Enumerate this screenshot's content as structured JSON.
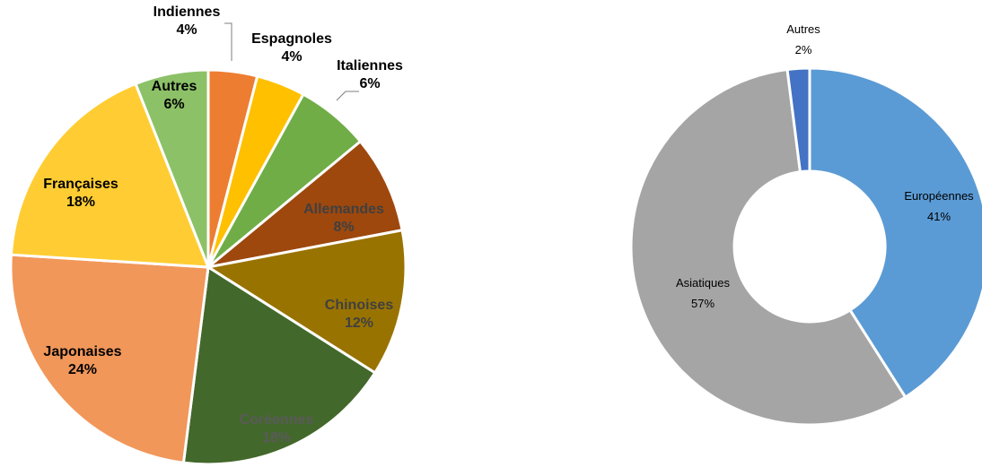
{
  "chart_data": [
    {
      "type": "pie",
      "categories": [
        "Indiennes",
        "Espagnoles",
        "Italiennes",
        "Allemandes",
        "Chinoises",
        "Coréennes",
        "Japonaises",
        "Françaises",
        "Autres"
      ],
      "values": [
        4,
        4,
        6,
        8,
        12,
        18,
        24,
        18,
        6
      ],
      "labels": [
        "4%",
        "4%",
        "6%",
        "8%",
        "12%",
        "18%",
        "24%",
        "18%",
        "6%"
      ],
      "colors": [
        "#ED7D31",
        "#FFC000",
        "#70AD47",
        "#9E480E",
        "#997300",
        "#43682B",
        "#F1975A",
        "#FFCD33",
        "#8CC168"
      ],
      "label_colors": [
        "#000000",
        "#000000",
        "#000000",
        "#404040",
        "#404040",
        "#5A5A5A",
        "#000000",
        "#000000",
        "#000000"
      ]
    },
    {
      "type": "pie",
      "donut": true,
      "categories": [
        "Européennes",
        "Asiatiques",
        "Autres"
      ],
      "values": [
        41,
        57,
        2
      ],
      "labels": [
        "41%",
        "57%",
        "2%"
      ],
      "colors": [
        "#5B9BD5",
        "#A5A5A5",
        "#4472C4"
      ],
      "label_colors": [
        "#000000",
        "#000000",
        "#000000"
      ]
    }
  ]
}
